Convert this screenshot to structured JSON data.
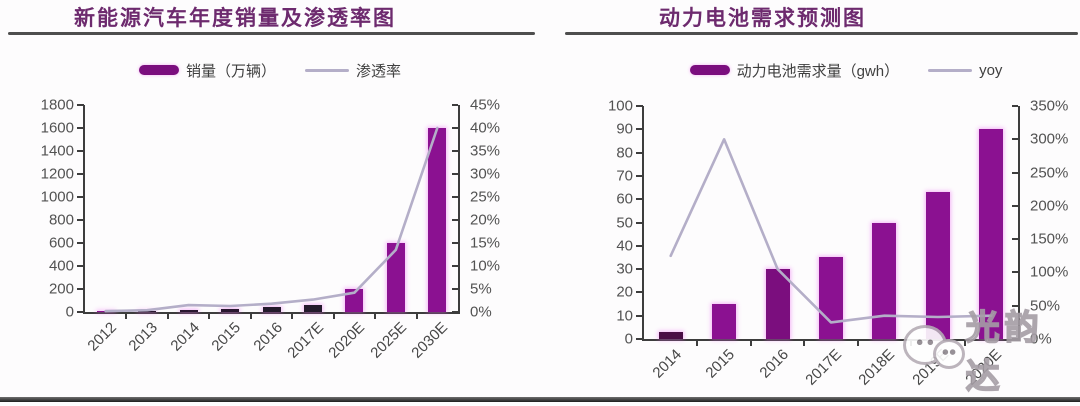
{
  "watermark": {
    "text": "光韵达"
  },
  "colors": {
    "bar_purple": "#8b1191",
    "bar_dark": "#2a1630",
    "line_gray": "#b4aec8",
    "title_purple": "#6d2a6e",
    "axis_gray": "#3d3d3d"
  },
  "chart_data": [
    {
      "type": "bar",
      "combo": "bar+line",
      "title": "新能源汽车年度销量及渗透率图",
      "legend_position": "top-center",
      "grid": false,
      "categories": [
        "2012",
        "2013",
        "2014",
        "2015",
        "2016",
        "2017E",
        "2020E",
        "2025E",
        "2030E"
      ],
      "series": [
        {
          "name": "销量（万辆）",
          "type": "bar",
          "axis": "left",
          "values": [
            1,
            2,
            15,
            30,
            45,
            60,
            200,
            600,
            1600
          ],
          "bar_colors": [
            "#8b1191",
            "#2a1630",
            "#2a1630",
            "#2a1630",
            "#241a2c",
            "#241a2c",
            "#8b1191",
            "#8b1191",
            "#8b1191"
          ]
        },
        {
          "name": "渗透率",
          "type": "line",
          "axis": "right",
          "values": [
            0.2,
            0.4,
            1.5,
            1.3,
            1.8,
            2.7,
            4.2,
            13.5,
            40
          ]
        }
      ],
      "left_axis": {
        "min": 0,
        "max": 1800,
        "tick_labels": [
          "1800",
          "1600",
          "1400",
          "1200",
          "1000",
          "800",
          "600",
          "400",
          "200",
          "0"
        ]
      },
      "right_axis": {
        "min": 0,
        "max": 45,
        "tick_labels": [
          "45%",
          "40%",
          "35%",
          "30%",
          "25%",
          "20%",
          "15%",
          "10%",
          "5%",
          "0%"
        ]
      }
    },
    {
      "type": "bar",
      "combo": "bar+line",
      "title": "动力电池需求预测图",
      "legend_position": "top-center",
      "grid": false,
      "categories": [
        "2014",
        "2015",
        "2016",
        "2017E",
        "2018E",
        "2019E",
        "2020E"
      ],
      "series": [
        {
          "name": "动力电池需求量（gwh）",
          "type": "bar",
          "axis": "left",
          "values": [
            3,
            15,
            30,
            35,
            50,
            63,
            90
          ],
          "bar_colors": [
            "#4a0d45",
            "#8b1191",
            "#7b0e7e",
            "#8b1191",
            "#8b1191",
            "#8b1191",
            "#8b1191"
          ]
        },
        {
          "name": "yoy",
          "type": "line",
          "axis": "right",
          "values": [
            125,
            300,
            105,
            25,
            35,
            33,
            35
          ]
        }
      ],
      "left_axis": {
        "min": 0,
        "max": 100,
        "tick_labels": [
          "100",
          "90",
          "80",
          "70",
          "60",
          "50",
          "40",
          "30",
          "20",
          "10",
          "0"
        ]
      },
      "right_axis": {
        "min": 0,
        "max": 350,
        "tick_labels": [
          "350%",
          "300%",
          "250%",
          "200%",
          "150%",
          "100%",
          "50%",
          "0%"
        ]
      }
    }
  ]
}
